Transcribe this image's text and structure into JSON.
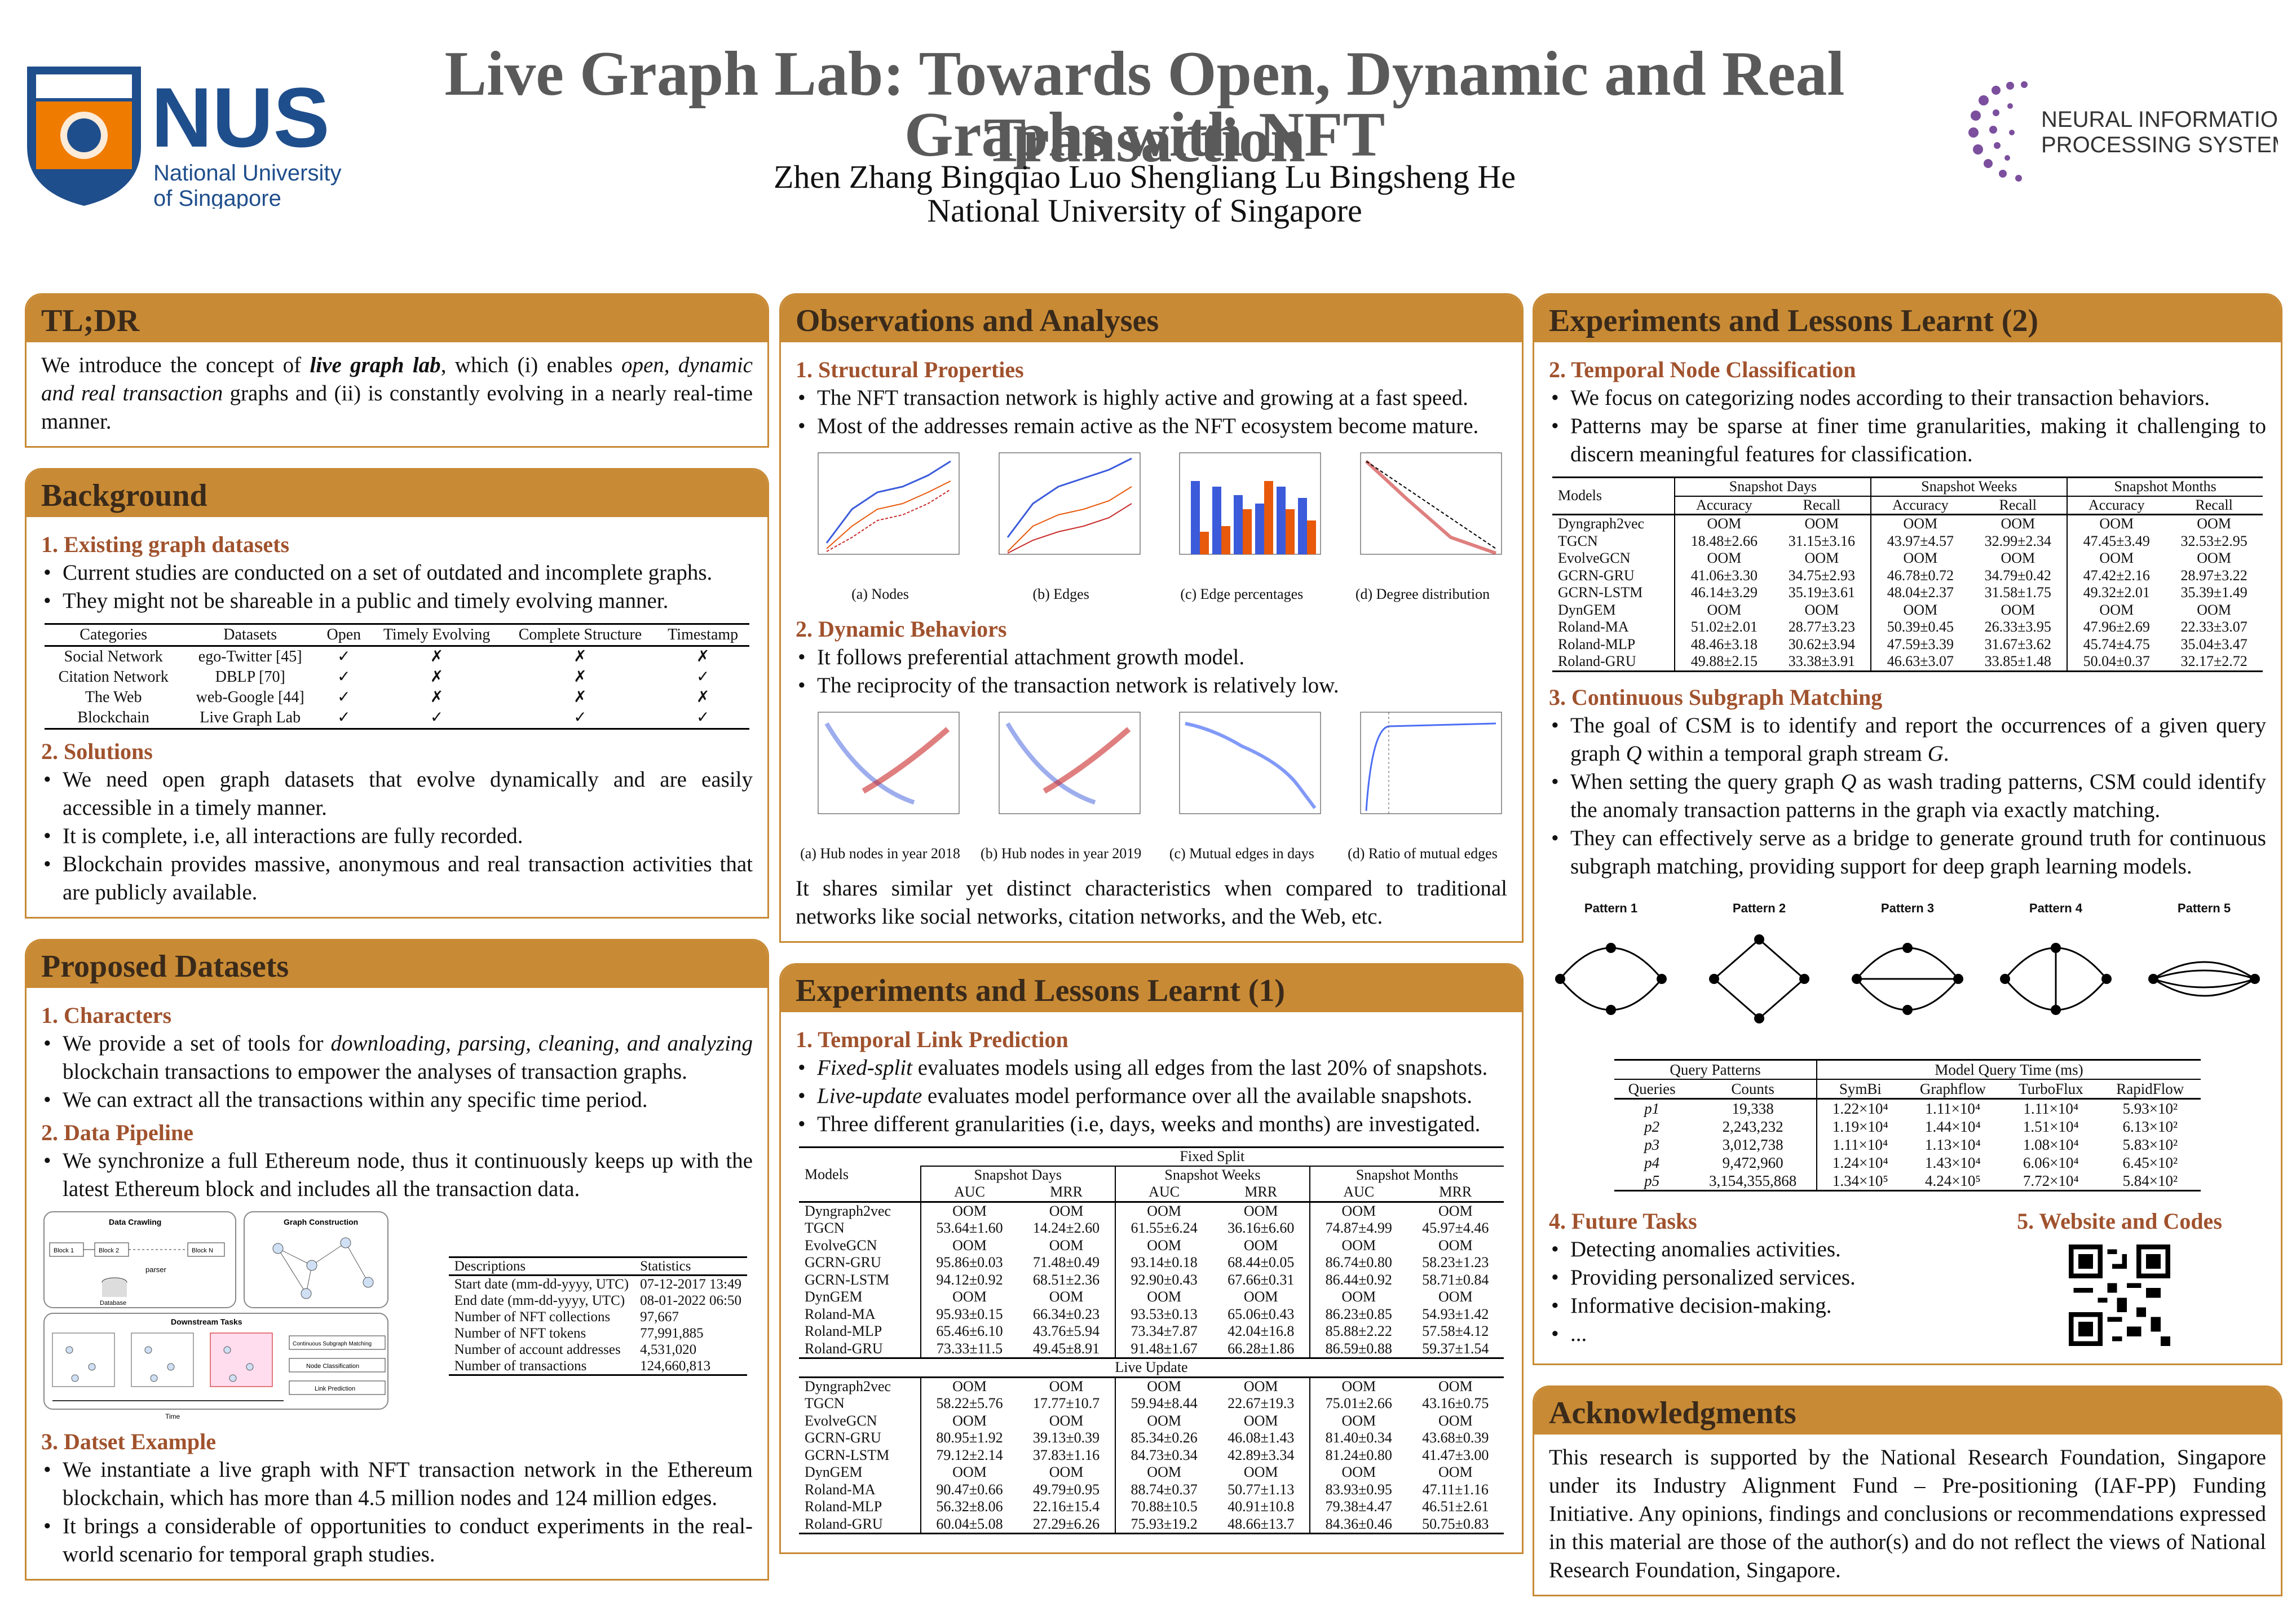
{
  "header": {
    "title_line1": "Live Graph Lab: Towards Open, Dynamic and Real Transaction",
    "title_line2": "Graphs with NFT",
    "authors": "Zhen Zhang   Bingqiao Luo   Shengliang Lu   Bingsheng He",
    "affiliation": "National University of Singapore",
    "nus_logo": "NUS",
    "nus_sub1": "National University",
    "nus_sub2": "of Singapore",
    "nips1": "NEURAL INFORMATION",
    "nips2": "PROCESSING SYSTEMS"
  },
  "colors": {
    "accent": "#c88a35",
    "sub": "#a0522d",
    "nus_blue": "#1f4e8c",
    "nus_orange": "#ef7c00"
  },
  "tldr": {
    "title": "TL;DR",
    "text_a": "We introduce the concept of ",
    "text_em": "live graph lab",
    "text_b": ", which (i) enables ",
    "text_em2": "open, dynamic and real transaction",
    "text_c": " graphs and (ii) is constantly evolving in a nearly real-time manner."
  },
  "background": {
    "title": "Background",
    "s1": "1. Existing graph datasets",
    "b1": [
      "Current studies are conducted on a set of outdated and incomplete graphs.",
      "They might not be shareable in a public and timely evolving manner."
    ],
    "table": {
      "headers": [
        "Categories",
        "Datasets",
        "Open",
        "Timely Evolving",
        "Complete Structure",
        "Timestamp"
      ],
      "rows": [
        [
          "Social Network",
          "ego-Twitter [45]",
          "✓",
          "✗",
          "✗",
          "✗"
        ],
        [
          "Citation Network",
          "DBLP [70]",
          "✓",
          "✗",
          "✗",
          "✓"
        ],
        [
          "The Web",
          "web-Google [44]",
          "✓",
          "✗",
          "✗",
          "✗"
        ],
        [
          "Blockchain",
          "Live Graph Lab",
          "✓",
          "✓",
          "✓",
          "✓"
        ]
      ]
    },
    "s2": "2. Solutions",
    "b2": [
      "We need open graph datasets that evolve dynamically and are easily accessible in a timely manner.",
      "It is complete, i.e, all interactions are fully recorded.",
      "Blockchain provides massive, anonymous and real transaction activities that are publicly available."
    ]
  },
  "datasets": {
    "title": "Proposed Datasets",
    "s1": "1. Characters",
    "b1a": "We provide a set of tools for ",
    "b1em": "downloading, parsing, cleaning, and analyzing",
    "b1b": " blockchain transactions to empower the analyses of transaction graphs.",
    "b1c": "We can extract all the transactions within any specific time period.",
    "s2": "2. Data Pipeline",
    "b2": "We synchronize a full Ethereum node, thus it continuously keeps up with the latest Ethereum block and includes all the transaction data.",
    "pipe": {
      "crawl": "Data Crawling",
      "construct": "Graph Construction",
      "block1": "Block 1",
      "block2": "Block 2",
      "blockn": "Block N",
      "parser": "parser",
      "database": "Database",
      "downstream": "Downstream Tasks",
      "csm": "Continuous Subgraph Matching",
      "nc": "Node Classification",
      "lp": "Link Prediction",
      "time": "Time"
    },
    "stats": {
      "headers": [
        "Descriptions",
        "Statistics"
      ],
      "rows": [
        [
          "Start date (mm-dd-yyyy, UTC)",
          "07-12-2017 13:49"
        ],
        [
          "End date (mm-dd-yyyy, UTC)",
          "08-01-2022 06:50"
        ],
        [
          "Number of NFT collections",
          "97,667"
        ],
        [
          "Number of NFT tokens",
          "77,991,885"
        ],
        [
          "Number of account addresses",
          "4,531,020"
        ],
        [
          "Number of transactions",
          "124,660,813"
        ]
      ]
    },
    "s3": "3. Datset Example",
    "b3": [
      "We instantiate a live graph with NFT transaction network in the Ethereum blockchain, which has more than 4.5 million nodes and 124 million edges.",
      "It brings a considerable of opportunities to conduct experiments in the real-world scenario for temporal graph studies."
    ]
  },
  "obs": {
    "title": "Observations and Analyses",
    "s1": "1. Structural Properties",
    "b1": [
      "The NFT transaction network is highly active and growing at a fast speed.",
      "Most of the addresses remain active as the NFT ecosystem become mature."
    ],
    "fig1": [
      "(a) Nodes",
      "(b) Edges",
      "(c) Edge percentages",
      "(d) Degree distribution"
    ],
    "s2": "2. Dynamic Behaviors",
    "b2": [
      "It follows preferential attachment growth model.",
      "The reciprocity of the transaction network is relatively low."
    ],
    "fig2": [
      "(a) Hub nodes in year 2018",
      "(b) Hub nodes in year 2019",
      "(c) Mutual edges in days",
      "(d) Ratio of mutual edges"
    ],
    "summary": "It shares similar yet distinct characteristics when compared to traditional networks like social networks, citation networks, and the Web, etc."
  },
  "exp1": {
    "title": "Experiments and Lessons Learnt (1)",
    "s1": "1. Temporal Link Prediction",
    "b1": [
      {
        "em": "Fixed-split",
        "t": " evaluates models using all edges from the last 20% of snapshots."
      },
      {
        "em": "Live-update",
        "t": " evaluates model performance over all the available snapshots."
      },
      {
        "em": "",
        "t": "Three different granularities (i.e, days, weeks and months) are investigated."
      }
    ],
    "table": {
      "col_models": "Models",
      "fixed": "Fixed Split",
      "live": "Live Update",
      "groups": [
        "Snapshot Days",
        "Snapshot Weeks",
        "Snapshot Months"
      ],
      "metrics": [
        "AUC",
        "MRR",
        "AUC",
        "MRR",
        "AUC",
        "MRR"
      ],
      "fixed_rows": [
        [
          "Dyngraph2vec",
          "OOM",
          "OOM",
          "OOM",
          "OOM",
          "OOM",
          "OOM"
        ],
        [
          "TGCN",
          "53.64±1.60",
          "14.24±2.60",
          "61.55±6.24",
          "36.16±6.60",
          "74.87±4.99",
          "45.97±4.46"
        ],
        [
          "EvolveGCN",
          "OOM",
          "OOM",
          "OOM",
          "OOM",
          "OOM",
          "OOM"
        ],
        [
          "GCRN-GRU",
          "95.86±0.03",
          "71.48±0.49",
          "93.14±0.18",
          "68.44±0.05",
          "86.74±0.80",
          "58.23±1.23"
        ],
        [
          "GCRN-LSTM",
          "94.12±0.92",
          "68.51±2.36",
          "92.90±0.43",
          "67.66±0.31",
          "86.44±0.92",
          "58.71±0.84"
        ],
        [
          "DynGEM",
          "OOM",
          "OOM",
          "OOM",
          "OOM",
          "OOM",
          "OOM"
        ],
        [
          "Roland-MA",
          "95.93±0.15",
          "66.34±0.23",
          "93.53±0.13",
          "65.06±0.43",
          "86.23±0.85",
          "54.93±1.42"
        ],
        [
          "Roland-MLP",
          "65.46±6.10",
          "43.76±5.94",
          "73.34±7.87",
          "42.04±16.8",
          "85.88±2.22",
          "57.58±4.12"
        ],
        [
          "Roland-GRU",
          "73.33±11.5",
          "49.45±8.91",
          "91.48±1.67",
          "66.28±1.86",
          "86.59±0.88",
          "59.37±1.54"
        ]
      ],
      "live_rows": [
        [
          "Dyngraph2vec",
          "OOM",
          "OOM",
          "OOM",
          "OOM",
          "OOM",
          "OOM"
        ],
        [
          "TGCN",
          "58.22±5.76",
          "17.77±10.7",
          "59.94±8.44",
          "22.67±19.3",
          "75.01±2.66",
          "43.16±0.75"
        ],
        [
          "EvolveGCN",
          "OOM",
          "OOM",
          "OOM",
          "OOM",
          "OOM",
          "OOM"
        ],
        [
          "GCRN-GRU",
          "80.95±1.92",
          "39.13±0.39",
          "85.34±0.26",
          "46.08±1.43",
          "81.40±0.34",
          "43.68±0.39"
        ],
        [
          "GCRN-LSTM",
          "79.12±2.14",
          "37.83±1.16",
          "84.73±0.34",
          "42.89±3.34",
          "81.24±0.80",
          "41.47±3.00"
        ],
        [
          "DynGEM",
          "OOM",
          "OOM",
          "OOM",
          "OOM",
          "OOM",
          "OOM"
        ],
        [
          "Roland-MA",
          "90.47±0.66",
          "49.79±0.95",
          "88.74±0.37",
          "50.77±1.13",
          "83.93±0.95",
          "47.11±1.16"
        ],
        [
          "Roland-MLP",
          "56.32±8.06",
          "22.16±15.4",
          "70.88±10.5",
          "40.91±10.8",
          "79.38±4.47",
          "46.51±2.61"
        ],
        [
          "Roland-GRU",
          "60.04±5.08",
          "27.29±6.26",
          "75.93±19.2",
          "48.66±13.7",
          "84.36±0.46",
          "50.75±0.83"
        ]
      ]
    }
  },
  "exp2": {
    "title": "Experiments and Lessons Learnt (2)",
    "s2": "2. Temporal Node Classification",
    "b2": [
      "We focus on categorizing nodes according to their transaction behaviors.",
      "Patterns may be sparse at finer time granularities, making it challenging to discern meaningful features for classification."
    ],
    "table": {
      "col_models": "Models",
      "groups": [
        "Snapshot Days",
        "Snapshot Weeks",
        "Snapshot Months"
      ],
      "metrics": [
        "Accuracy",
        "Recall",
        "Accuracy",
        "Recall",
        "Accuracy",
        "Recall"
      ],
      "rows": [
        [
          "Dyngraph2vec",
          "OOM",
          "OOM",
          "OOM",
          "OOM",
          "OOM",
          "OOM"
        ],
        [
          "TGCN",
          "18.48±2.66",
          "31.15±3.16",
          "43.97±4.57",
          "32.99±2.34",
          "47.45±3.49",
          "32.53±2.95"
        ],
        [
          "EvolveGCN",
          "OOM",
          "OOM",
          "OOM",
          "OOM",
          "OOM",
          "OOM"
        ],
        [
          "GCRN-GRU",
          "41.06±3.30",
          "34.75±2.93",
          "46.78±0.72",
          "34.79±0.42",
          "47.42±2.16",
          "28.97±3.22"
        ],
        [
          "GCRN-LSTM",
          "46.14±3.29",
          "35.19±3.61",
          "48.04±2.37",
          "31.58±1.75",
          "49.32±2.01",
          "35.39±1.49"
        ],
        [
          "DynGEM",
          "OOM",
          "OOM",
          "OOM",
          "OOM",
          "OOM",
          "OOM"
        ],
        [
          "Roland-MA",
          "51.02±2.01",
          "28.77±3.23",
          "50.39±0.45",
          "26.33±3.95",
          "47.96±2.69",
          "22.33±3.07"
        ],
        [
          "Roland-MLP",
          "48.46±3.18",
          "30.62±3.94",
          "47.59±3.39",
          "31.67±3.62",
          "45.74±4.75",
          "35.04±3.47"
        ],
        [
          "Roland-GRU",
          "49.88±2.15",
          "33.38±3.91",
          "46.63±3.07",
          "33.85±1.48",
          "50.04±0.37",
          "32.17±2.72"
        ]
      ]
    },
    "s3": "3. Continuous Subgraph Matching",
    "b3a": "The goal of CSM is to identify and report the occurrences of a given query graph ",
    "b3q": "Q",
    "b3b": " within a temporal graph stream ",
    "b3g": "G",
    "b3c": ".",
    "b3d_a": "When setting the query graph ",
    "b3d_b": " as wash trading patterns, CSM could identify the anomaly transaction patterns in the graph via exactly matching.",
    "b3e": "They can effectively serve as a bridge to generate ground truth for continuous subgraph matching, providing support for deep graph learning models.",
    "patterns": [
      "Pattern 1",
      "Pattern 2",
      "Pattern 3",
      "Pattern 4",
      "Pattern 5"
    ],
    "qtable": {
      "h1": "Query Patterns",
      "h2": "Model Query Time (ms)",
      "cols": [
        "Queries",
        "Counts",
        "SymBi",
        "Graphflow",
        "TurboFlux",
        "RapidFlow"
      ],
      "rows": [
        [
          "p1",
          "19,338",
          "1.22×10⁴",
          "1.11×10⁴",
          "1.11×10⁴",
          "5.93×10²"
        ],
        [
          "p2",
          "2,243,232",
          "1.19×10⁴",
          "1.44×10⁴",
          "1.51×10⁴",
          "6.13×10²"
        ],
        [
          "p3",
          "3,012,738",
          "1.11×10⁴",
          "1.13×10⁴",
          "1.08×10⁴",
          "5.83×10²"
        ],
        [
          "p4",
          "9,472,960",
          "1.24×10⁴",
          "1.43×10⁴",
          "6.06×10⁴",
          "6.45×10²"
        ],
        [
          "p5",
          "3,154,355,868",
          "1.34×10⁵",
          "4.24×10⁵",
          "7.72×10⁴",
          "5.84×10²"
        ]
      ]
    },
    "s4": "4. Future Tasks",
    "b4": [
      "Detecting anomalies activities.",
      "Providing personalized services.",
      "Informative decision-making.",
      "..."
    ],
    "s5": "5. Website and Codes"
  },
  "ack": {
    "title": "Acknowledgments",
    "text": "This research is supported by the National Research Foundation, Singapore under its Industry Alignment Fund – Pre-positioning (IAF-PP) Funding Initiative.  Any opinions, findings and conclusions or recommendations expressed in this material are those of the author(s) and do not reflect the views of National Research Foundation, Singapore."
  }
}
